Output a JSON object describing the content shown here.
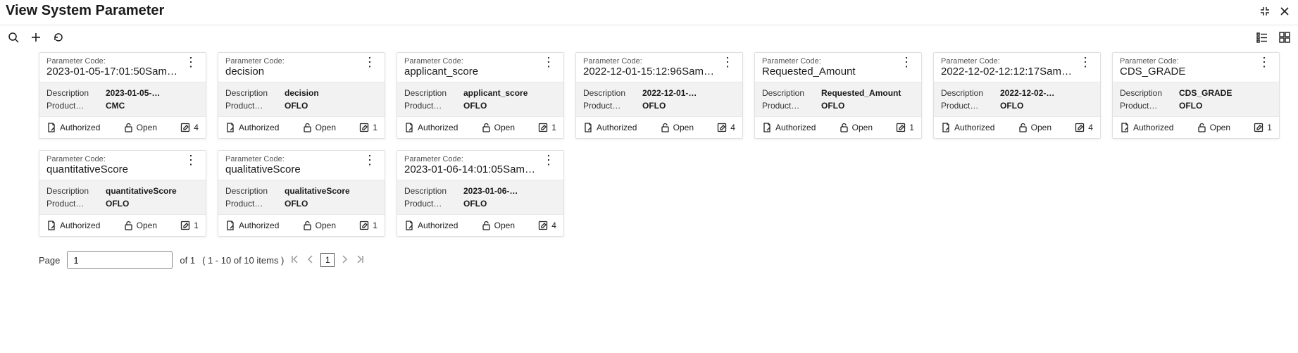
{
  "title": "View System Parameter",
  "labels": {
    "parameterCode": "Parameter Code:",
    "description": "Description",
    "product": "Product…",
    "authorized": "Authorized",
    "open": "Open",
    "page": "Page",
    "ofTotal": "of 1",
    "itemsRange": "( 1 - 10 of 10 items )"
  },
  "pagination": {
    "currentInput": "1",
    "currentPage": "1"
  },
  "cards": [
    {
      "code": "2023-01-05-17:01:50Samp…",
      "description": "2023-01-05-…",
      "product": "CMC",
      "status": "Authorized",
      "lock": "Open",
      "edits": "4"
    },
    {
      "code": "decision",
      "description": "decision",
      "product": "OFLO",
      "status": "Authorized",
      "lock": "Open",
      "edits": "1"
    },
    {
      "code": "applicant_score",
      "description": "applicant_score",
      "product": "OFLO",
      "status": "Authorized",
      "lock": "Open",
      "edits": "1"
    },
    {
      "code": "2022-12-01-15:12:96Sampl…",
      "description": "2022-12-01-…",
      "product": "OFLO",
      "status": "Authorized",
      "lock": "Open",
      "edits": "4"
    },
    {
      "code": "Requested_Amount",
      "description": "Requested_Amount",
      "product": "OFLO",
      "status": "Authorized",
      "lock": "Open",
      "edits": "1"
    },
    {
      "code": "2022-12-02-12:12:17Sampl…",
      "description": "2022-12-02-…",
      "product": "OFLO",
      "status": "Authorized",
      "lock": "Open",
      "edits": "4"
    },
    {
      "code": "CDS_GRADE",
      "description": "CDS_GRADE",
      "product": "OFLO",
      "status": "Authorized",
      "lock": "Open",
      "edits": "1"
    },
    {
      "code": "quantitativeScore",
      "description": "quantitativeScore",
      "product": "OFLO",
      "status": "Authorized",
      "lock": "Open",
      "edits": "1"
    },
    {
      "code": "qualitativeScore",
      "description": "qualitativeScore",
      "product": "OFLO",
      "status": "Authorized",
      "lock": "Open",
      "edits": "1"
    },
    {
      "code": "2023-01-06-14:01:05Samp…",
      "description": "2023-01-06-…",
      "product": "OFLO",
      "status": "Authorized",
      "lock": "Open",
      "edits": "4"
    }
  ],
  "colors": {
    "border": "#e0e0e0",
    "bodyBg": "#f2f2f2",
    "text": "#1a1a1a",
    "muted": "#555"
  }
}
